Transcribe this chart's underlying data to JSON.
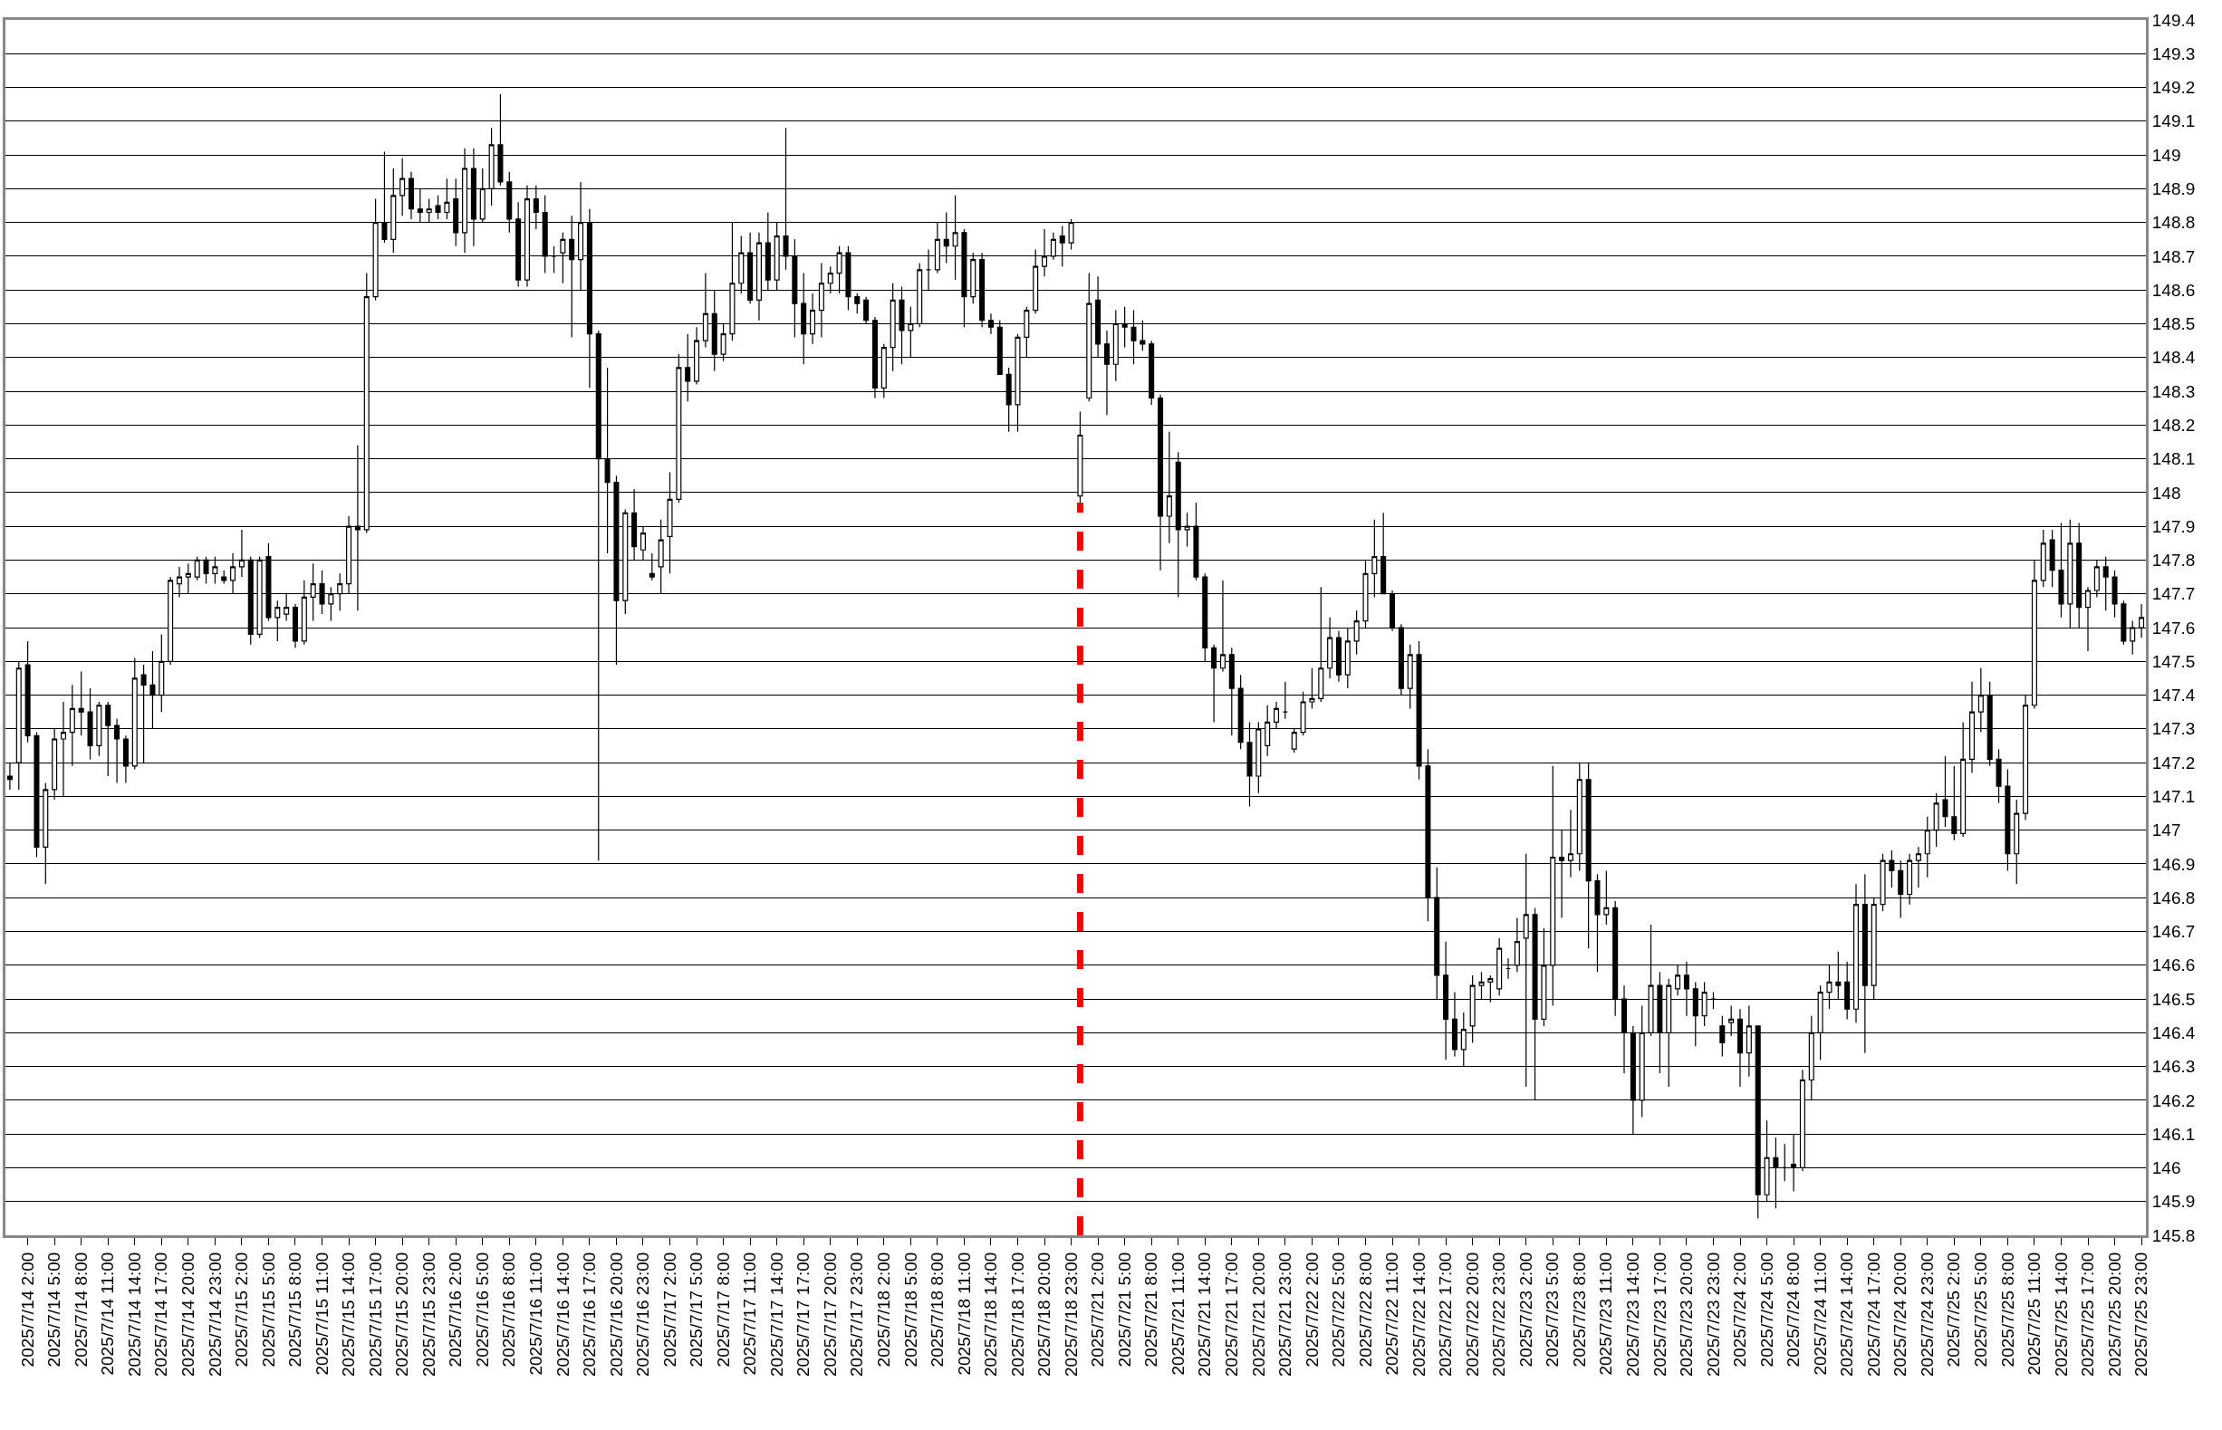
{
  "chart_data": {
    "type": "candlestick",
    "categories": [
      null,
      null,
      "2025/7/14 2:00",
      null,
      null,
      "2025/7/14 5:00",
      null,
      null,
      "2025/7/14 8:00",
      null,
      null,
      "2025/7/14 11:00",
      null,
      null,
      "2025/7/14 14:00",
      null,
      null,
      "2025/7/14 17:00",
      null,
      null,
      "2025/7/14 20:00",
      null,
      null,
      "2025/7/14 23:00",
      null,
      null,
      "2025/7/15 2:00",
      null,
      null,
      "2025/7/15 5:00",
      null,
      null,
      "2025/7/15 8:00",
      null,
      null,
      "2025/7/15 11:00",
      null,
      null,
      "2025/7/15 14:00",
      null,
      null,
      "2025/7/15 17:00",
      null,
      null,
      "2025/7/15 20:00",
      null,
      null,
      "2025/7/15 23:00",
      null,
      null,
      "2025/7/16 2:00",
      null,
      null,
      "2025/7/16 5:00",
      null,
      null,
      "2025/7/16 8:00",
      null,
      null,
      "2025/7/16 11:00",
      null,
      null,
      "2025/7/16 14:00",
      null,
      null,
      "2025/7/16 17:00",
      null,
      null,
      "2025/7/16 20:00",
      null,
      null,
      "2025/7/16 23:00",
      null,
      null,
      "2025/7/17 2:00",
      null,
      null,
      "2025/7/17 5:00",
      null,
      null,
      "2025/7/17 8:00",
      null,
      null,
      "2025/7/17 11:00",
      null,
      null,
      "2025/7/17 14:00",
      null,
      null,
      "2025/7/17 17:00",
      null,
      null,
      "2025/7/17 20:00",
      null,
      null,
      "2025/7/17 23:00",
      null,
      null,
      "2025/7/18 2:00",
      null,
      null,
      "2025/7/18 5:00",
      null,
      null,
      "2025/7/18 8:00",
      null,
      null,
      "2025/7/18 11:00",
      null,
      null,
      "2025/7/18 14:00",
      null,
      null,
      "2025/7/18 17:00",
      null,
      null,
      "2025/7/18 20:00",
      null,
      null,
      "2025/7/18 23:00",
      null,
      null,
      "2025/7/21 2:00",
      null,
      null,
      "2025/7/21 5:00",
      null,
      null,
      "2025/7/21 8:00",
      null,
      null,
      "2025/7/21 11:00",
      null,
      null,
      "2025/7/21 14:00",
      null,
      null,
      "2025/7/21 17:00",
      null,
      null,
      "2025/7/21 20:00",
      null,
      null,
      "2025/7/21 23:00",
      null,
      null,
      "2025/7/22 2:00",
      null,
      null,
      "2025/7/22 5:00",
      null,
      null,
      "2025/7/22 8:00",
      null,
      null,
      "2025/7/22 11:00",
      null,
      null,
      "2025/7/22 14:00",
      null,
      null,
      "2025/7/22 17:00",
      null,
      null,
      "2025/7/22 20:00",
      null,
      null,
      "2025/7/22 23:00",
      null,
      null,
      "2025/7/23 2:00",
      null,
      null,
      "2025/7/23 5:00",
      null,
      null,
      "2025/7/23 8:00",
      null,
      null,
      "2025/7/23 11:00",
      null,
      null,
      "2025/7/23 14:00",
      null,
      null,
      "2025/7/23 17:00",
      null,
      null,
      "2025/7/23 20:00",
      null,
      null,
      "2025/7/23 23:00",
      null,
      null,
      "2025/7/24 2:00",
      null,
      null,
      "2025/7/24 5:00",
      null,
      null,
      "2025/7/24 8:00",
      null,
      null,
      "2025/7/24 11:00",
      null,
      null,
      "2025/7/24 14:00",
      null,
      null,
      "2025/7/24 17:00",
      null,
      null,
      "2025/7/24 20:00",
      null,
      null,
      "2025/7/24 23:00",
      null,
      null,
      "2025/7/25 2:00",
      null,
      null,
      "2025/7/25 5:00",
      null,
      null,
      "2025/7/25 8:00",
      null,
      null,
      "2025/7/25 11:00",
      null,
      null,
      "2025/7/25 14:00",
      null,
      null,
      "2025/7/25 17:00",
      null,
      null,
      "2025/7/25 20:00",
      null,
      null,
      "2025/7/25 23:00"
    ],
    "ohlc": [
      [
        147.16,
        147.2,
        147.12,
        147.15
      ],
      [
        147.2,
        147.5,
        147.12,
        147.48
      ],
      [
        147.49,
        147.56,
        147.26,
        147.28
      ],
      [
        147.28,
        147.29,
        146.92,
        146.95
      ],
      [
        146.95,
        147.14,
        146.84,
        147.12
      ],
      [
        147.12,
        147.3,
        147.09,
        147.27
      ],
      [
        147.27,
        147.38,
        147.1,
        147.29
      ],
      [
        147.29,
        147.43,
        147.19,
        147.36
      ],
      [
        147.36,
        147.47,
        147.28,
        147.35
      ],
      [
        147.35,
        147.42,
        147.21,
        147.25
      ],
      [
        147.25,
        147.38,
        147.22,
        147.37
      ],
      [
        147.37,
        147.38,
        147.16,
        147.31
      ],
      [
        147.31,
        147.33,
        147.14,
        147.27
      ],
      [
        147.27,
        147.28,
        147.14,
        147.19
      ],
      [
        147.19,
        147.51,
        147.18,
        147.45
      ],
      [
        147.46,
        147.49,
        147.2,
        147.43
      ],
      [
        147.43,
        147.53,
        147.3,
        147.4
      ],
      [
        147.4,
        147.58,
        147.35,
        147.5
      ],
      [
        147.5,
        147.75,
        147.49,
        147.74
      ],
      [
        147.73,
        147.78,
        147.69,
        147.75
      ],
      [
        147.75,
        147.79,
        147.7,
        147.76
      ],
      [
        147.75,
        147.81,
        147.74,
        147.8
      ],
      [
        147.8,
        147.81,
        147.73,
        147.76
      ],
      [
        147.76,
        147.81,
        147.73,
        147.78
      ],
      [
        147.75,
        147.77,
        147.73,
        147.74
      ],
      [
        147.74,
        147.82,
        147.7,
        147.78
      ],
      [
        147.78,
        147.89,
        147.75,
        147.8
      ],
      [
        147.8,
        147.81,
        147.55,
        147.58
      ],
      [
        147.58,
        147.81,
        147.57,
        147.8
      ],
      [
        147.81,
        147.85,
        147.62,
        147.63
      ],
      [
        147.63,
        147.68,
        147.56,
        147.66
      ],
      [
        147.64,
        147.7,
        147.62,
        147.66
      ],
      [
        147.66,
        147.67,
        147.54,
        147.56
      ],
      [
        147.56,
        147.74,
        147.55,
        147.69
      ],
      [
        147.69,
        147.79,
        147.62,
        147.73
      ],
      [
        147.73,
        147.77,
        147.64,
        147.67
      ],
      [
        147.67,
        147.72,
        147.62,
        147.7
      ],
      [
        147.7,
        147.76,
        147.65,
        147.73
      ],
      [
        147.73,
        147.93,
        147.7,
        147.9
      ],
      [
        147.9,
        148.14,
        147.65,
        147.89
      ],
      [
        147.89,
        148.65,
        147.88,
        148.58
      ],
      [
        148.58,
        148.87,
        148.57,
        148.8
      ],
      [
        148.8,
        149.01,
        148.74,
        148.75
      ],
      [
        148.75,
        148.96,
        148.71,
        148.88
      ],
      [
        148.88,
        148.99,
        148.82,
        148.93
      ],
      [
        148.93,
        148.95,
        148.81,
        148.84
      ],
      [
        148.84,
        148.9,
        148.8,
        148.83
      ],
      [
        148.83,
        148.87,
        148.8,
        148.84
      ],
      [
        148.85,
        148.88,
        148.81,
        148.83
      ],
      [
        148.83,
        148.93,
        148.81,
        148.86
      ],
      [
        148.87,
        148.93,
        148.73,
        148.77
      ],
      [
        148.77,
        149.02,
        148.71,
        148.96
      ],
      [
        148.96,
        149.02,
        148.73,
        148.81
      ],
      [
        148.81,
        148.96,
        148.8,
        148.9
      ],
      [
        148.9,
        149.08,
        148.85,
        149.03
      ],
      [
        149.03,
        149.18,
        148.91,
        148.92
      ],
      [
        148.92,
        148.95,
        148.77,
        148.81
      ],
      [
        148.81,
        148.86,
        148.61,
        148.63
      ],
      [
        148.63,
        148.91,
        148.61,
        148.87
      ],
      [
        148.87,
        148.91,
        148.78,
        148.83
      ],
      [
        148.83,
        148.88,
        148.65,
        148.7
      ],
      [
        148.7,
        148.73,
        148.65,
        148.7
      ],
      [
        148.71,
        148.77,
        148.62,
        148.75
      ],
      [
        148.75,
        148.82,
        148.46,
        148.69
      ],
      [
        148.69,
        148.92,
        148.6,
        148.8
      ],
      [
        148.8,
        148.84,
        148.31,
        148.47
      ],
      [
        148.47,
        148.48,
        146.91,
        148.1
      ],
      [
        148.1,
        148.37,
        147.82,
        148.03
      ],
      [
        148.03,
        148.05,
        147.49,
        147.68
      ],
      [
        147.68,
        147.95,
        147.64,
        147.94
      ],
      [
        147.94,
        148.01,
        147.8,
        147.84
      ],
      [
        147.83,
        147.9,
        147.8,
        147.88
      ],
      [
        147.76,
        147.82,
        147.74,
        147.75
      ],
      [
        147.78,
        147.92,
        147.7,
        147.86
      ],
      [
        147.87,
        148.06,
        147.76,
        147.98
      ],
      [
        147.98,
        148.41,
        147.97,
        148.37
      ],
      [
        148.37,
        148.47,
        148.27,
        148.33
      ],
      [
        148.33,
        148.49,
        148.32,
        148.45
      ],
      [
        148.45,
        148.65,
        148.43,
        148.53
      ],
      [
        148.53,
        148.6,
        148.36,
        148.41
      ],
      [
        148.41,
        148.5,
        148.39,
        148.47
      ],
      [
        148.47,
        148.8,
        148.45,
        148.62
      ],
      [
        148.62,
        148.76,
        148.59,
        148.71
      ],
      [
        148.71,
        148.77,
        148.56,
        148.57
      ],
      [
        148.57,
        148.77,
        148.51,
        148.74
      ],
      [
        148.74,
        148.83,
        148.6,
        148.63
      ],
      [
        148.63,
        148.8,
        148.6,
        148.76
      ],
      [
        148.76,
        149.08,
        148.66,
        148.7
      ],
      [
        148.7,
        148.75,
        148.46,
        148.56
      ],
      [
        148.56,
        148.65,
        148.38,
        148.47
      ],
      [
        148.47,
        148.59,
        148.44,
        148.54
      ],
      [
        148.54,
        148.68,
        148.46,
        148.62
      ],
      [
        148.62,
        148.67,
        148.59,
        148.65
      ],
      [
        148.65,
        148.73,
        148.59,
        148.71
      ],
      [
        148.71,
        148.73,
        148.54,
        148.58
      ],
      [
        148.58,
        148.59,
        148.53,
        148.56
      ],
      [
        148.57,
        148.58,
        148.5,
        148.51
      ],
      [
        148.51,
        148.52,
        148.28,
        148.31
      ],
      [
        148.31,
        148.44,
        148.28,
        148.43
      ],
      [
        148.43,
        148.62,
        148.36,
        148.57
      ],
      [
        148.57,
        148.61,
        148.38,
        148.48
      ],
      [
        148.48,
        148.55,
        148.4,
        148.5
      ],
      [
        148.5,
        148.68,
        148.49,
        148.66
      ],
      [
        148.66,
        148.72,
        148.6,
        148.66
      ],
      [
        148.66,
        148.8,
        148.65,
        148.75
      ],
      [
        148.75,
        148.83,
        148.68,
        148.73
      ],
      [
        148.73,
        148.88,
        148.63,
        148.77
      ],
      [
        148.77,
        148.78,
        148.49,
        148.58
      ],
      [
        148.58,
        148.71,
        148.56,
        148.69
      ],
      [
        148.69,
        148.71,
        148.49,
        148.51
      ],
      [
        148.51,
        148.53,
        148.47,
        148.49
      ],
      [
        148.49,
        148.51,
        148.35,
        148.35
      ],
      [
        148.35,
        148.37,
        148.18,
        148.26
      ],
      [
        148.26,
        148.47,
        148.18,
        148.46
      ],
      [
        148.46,
        148.55,
        148.4,
        148.54
      ],
      [
        148.54,
        148.72,
        148.53,
        148.67
      ],
      [
        148.67,
        148.78,
        148.64,
        148.7
      ],
      [
        148.7,
        148.77,
        148.69,
        148.75
      ],
      [
        148.76,
        148.79,
        148.67,
        148.74
      ],
      [
        148.74,
        148.81,
        148.72,
        148.8
      ],
      [
        147.99,
        148.24,
        147.97,
        148.17
      ],
      [
        148.28,
        148.65,
        148.27,
        148.56
      ],
      [
        148.57,
        148.64,
        148.4,
        148.44
      ],
      [
        148.44,
        148.48,
        148.23,
        148.38
      ],
      [
        148.38,
        148.54,
        148.33,
        148.5
      ],
      [
        148.5,
        148.55,
        148.43,
        148.49
      ],
      [
        148.49,
        148.54,
        148.38,
        148.45
      ],
      [
        148.45,
        148.51,
        148.42,
        148.44
      ],
      [
        148.44,
        148.45,
        148.26,
        148.28
      ],
      [
        148.28,
        148.29,
        147.77,
        147.93
      ],
      [
        147.93,
        148.18,
        147.85,
        147.99
      ],
      [
        148.09,
        148.12,
        147.69,
        147.89
      ],
      [
        147.89,
        147.94,
        147.84,
        147.9
      ],
      [
        147.9,
        147.97,
        147.74,
        147.75
      ],
      [
        147.75,
        147.76,
        147.5,
        147.54
      ],
      [
        147.54,
        147.55,
        147.32,
        147.48
      ],
      [
        147.48,
        147.74,
        147.47,
        147.52
      ],
      [
        147.52,
        147.54,
        147.28,
        147.42
      ],
      [
        147.42,
        147.46,
        147.24,
        147.26
      ],
      [
        147.26,
        147.32,
        147.07,
        147.16
      ],
      [
        147.16,
        147.32,
        147.11,
        147.3
      ],
      [
        147.25,
        147.37,
        147.22,
        147.32
      ],
      [
        147.32,
        147.38,
        147.3,
        147.36
      ],
      [
        147.35,
        147.44,
        147.33,
        147.35
      ],
      [
        147.24,
        147.3,
        147.23,
        147.29
      ],
      [
        147.29,
        147.41,
        147.28,
        147.38
      ],
      [
        147.38,
        147.48,
        147.36,
        147.39
      ],
      [
        147.39,
        147.72,
        147.38,
        147.48
      ],
      [
        147.48,
        147.63,
        147.45,
        147.57
      ],
      [
        147.57,
        147.59,
        147.44,
        147.46
      ],
      [
        147.46,
        147.6,
        147.42,
        147.56
      ],
      [
        147.56,
        147.65,
        147.52,
        147.62
      ],
      [
        147.62,
        147.8,
        147.6,
        147.76
      ],
      [
        147.76,
        147.92,
        147.69,
        147.81
      ],
      [
        147.81,
        147.94,
        147.7,
        147.7
      ],
      [
        147.7,
        147.71,
        147.59,
        147.6
      ],
      [
        147.6,
        147.61,
        147.4,
        147.42
      ],
      [
        147.42,
        147.55,
        147.36,
        147.52
      ],
      [
        147.52,
        147.56,
        147.15,
        147.19
      ],
      [
        147.19,
        147.24,
        146.73,
        146.8
      ],
      [
        146.8,
        146.89,
        146.5,
        146.57
      ],
      [
        146.57,
        146.67,
        146.32,
        146.44
      ],
      [
        146.44,
        146.52,
        146.33,
        146.35
      ],
      [
        146.35,
        146.46,
        146.3,
        146.41
      ],
      [
        146.42,
        146.57,
        146.37,
        146.54
      ],
      [
        146.54,
        146.58,
        146.5,
        146.55
      ],
      [
        146.55,
        146.57,
        146.49,
        146.56
      ],
      [
        146.53,
        146.68,
        146.51,
        146.65
      ],
      [
        146.59,
        146.62,
        146.56,
        146.59
      ],
      [
        146.6,
        146.74,
        146.58,
        146.67
      ],
      [
        146.68,
        146.93,
        146.24,
        146.75
      ],
      [
        146.75,
        146.77,
        146.2,
        146.44
      ],
      [
        146.44,
        146.71,
        146.42,
        146.6
      ],
      [
        146.6,
        147.19,
        146.48,
        146.92
      ],
      [
        146.92,
        147.0,
        146.74,
        146.91
      ],
      [
        146.91,
        147.06,
        146.86,
        146.93
      ],
      [
        146.93,
        147.2,
        146.88,
        147.15
      ],
      [
        147.15,
        147.2,
        146.65,
        146.85
      ],
      [
        146.85,
        146.87,
        146.58,
        146.75
      ],
      [
        146.75,
        146.88,
        146.72,
        146.77
      ],
      [
        146.77,
        146.79,
        146.45,
        146.5
      ],
      [
        146.5,
        146.54,
        146.28,
        146.4
      ],
      [
        146.4,
        146.42,
        146.1,
        146.2
      ],
      [
        146.2,
        146.48,
        146.15,
        146.4
      ],
      [
        146.4,
        146.72,
        146.39,
        146.54
      ],
      [
        146.54,
        146.58,
        146.28,
        146.4
      ],
      [
        146.4,
        146.56,
        146.24,
        146.54
      ],
      [
        146.53,
        146.6,
        146.51,
        146.57
      ],
      [
        146.57,
        146.61,
        146.45,
        146.53
      ],
      [
        146.53,
        146.55,
        146.36,
        146.45
      ],
      [
        146.45,
        146.55,
        146.42,
        146.52
      ],
      [
        146.5,
        146.52,
        146.47,
        146.5
      ],
      [
        146.42,
        146.45,
        146.33,
        146.37
      ],
      [
        146.43,
        146.48,
        146.39,
        146.44
      ],
      [
        146.44,
        146.47,
        146.24,
        146.34
      ],
      [
        146.34,
        146.48,
        146.27,
        146.42
      ],
      [
        146.42,
        146.42,
        145.85,
        145.92
      ],
      [
        145.92,
        146.14,
        145.9,
        146.03
      ],
      [
        146.03,
        146.09,
        145.88,
        146.0
      ],
      [
        146.0,
        146.07,
        145.96,
        146.0
      ],
      [
        146.01,
        146.1,
        145.93,
        146.0
      ],
      [
        146.0,
        146.29,
        145.99,
        146.26
      ],
      [
        146.26,
        146.45,
        146.2,
        146.4
      ],
      [
        146.4,
        146.54,
        146.32,
        146.52
      ],
      [
        146.52,
        146.6,
        146.47,
        146.55
      ],
      [
        146.55,
        146.64,
        146.5,
        146.54
      ],
      [
        146.55,
        146.61,
        146.44,
        146.47
      ],
      [
        146.47,
        146.84,
        146.43,
        146.78
      ],
      [
        146.78,
        146.87,
        146.34,
        146.54
      ],
      [
        146.54,
        146.8,
        146.5,
        146.78
      ],
      [
        146.78,
        146.93,
        146.76,
        146.91
      ],
      [
        146.91,
        146.94,
        146.83,
        146.88
      ],
      [
        146.88,
        146.91,
        146.74,
        146.81
      ],
      [
        146.81,
        146.93,
        146.78,
        146.91
      ],
      [
        146.91,
        146.95,
        146.83,
        146.93
      ],
      [
        146.93,
        147.04,
        146.86,
        147.0
      ],
      [
        147.0,
        147.11,
        146.95,
        147.08
      ],
      [
        147.09,
        147.22,
        147.01,
        147.04
      ],
      [
        147.04,
        147.19,
        146.97,
        146.99
      ],
      [
        146.99,
        147.32,
        146.98,
        147.21
      ],
      [
        147.21,
        147.44,
        147.17,
        147.35
      ],
      [
        147.35,
        147.48,
        147.29,
        147.4
      ],
      [
        147.4,
        147.44,
        147.19,
        147.21
      ],
      [
        147.21,
        147.24,
        147.08,
        147.13
      ],
      [
        147.13,
        147.18,
        146.88,
        146.93
      ],
      [
        146.93,
        147.09,
        146.84,
        147.05
      ],
      [
        147.05,
        147.4,
        147.03,
        147.37
      ],
      [
        147.37,
        147.8,
        147.36,
        147.74
      ],
      [
        147.74,
        147.89,
        147.72,
        147.85
      ],
      [
        147.86,
        147.89,
        147.72,
        147.77
      ],
      [
        147.77,
        147.91,
        147.63,
        147.67
      ],
      [
        147.67,
        147.92,
        147.6,
        147.85
      ],
      [
        147.85,
        147.91,
        147.6,
        147.66
      ],
      [
        147.66,
        147.72,
        147.53,
        147.71
      ],
      [
        147.71,
        147.8,
        147.69,
        147.78
      ],
      [
        147.78,
        147.81,
        147.65,
        147.75
      ],
      [
        147.75,
        147.77,
        147.63,
        147.67
      ],
      [
        147.67,
        147.68,
        147.55,
        147.56
      ],
      [
        147.56,
        147.62,
        147.52,
        147.6
      ],
      [
        147.6,
        147.67,
        147.57,
        147.63
      ]
    ],
    "ylim": [
      145.8,
      149.4
    ],
    "yticks": [
      145.8,
      145.9,
      146,
      146.1,
      146.2,
      146.3,
      146.4,
      146.5,
      146.6,
      146.7,
      146.8,
      146.9,
      147,
      147.1,
      147.2,
      147.3,
      147.4,
      147.5,
      147.6,
      147.7,
      147.8,
      147.9,
      148,
      148.1,
      148.2,
      148.3,
      148.4,
      148.5,
      148.6,
      148.7,
      148.8,
      148.9,
      149,
      149.1,
      149.2,
      149.3,
      149.4
    ],
    "grid": "y"
  }
}
